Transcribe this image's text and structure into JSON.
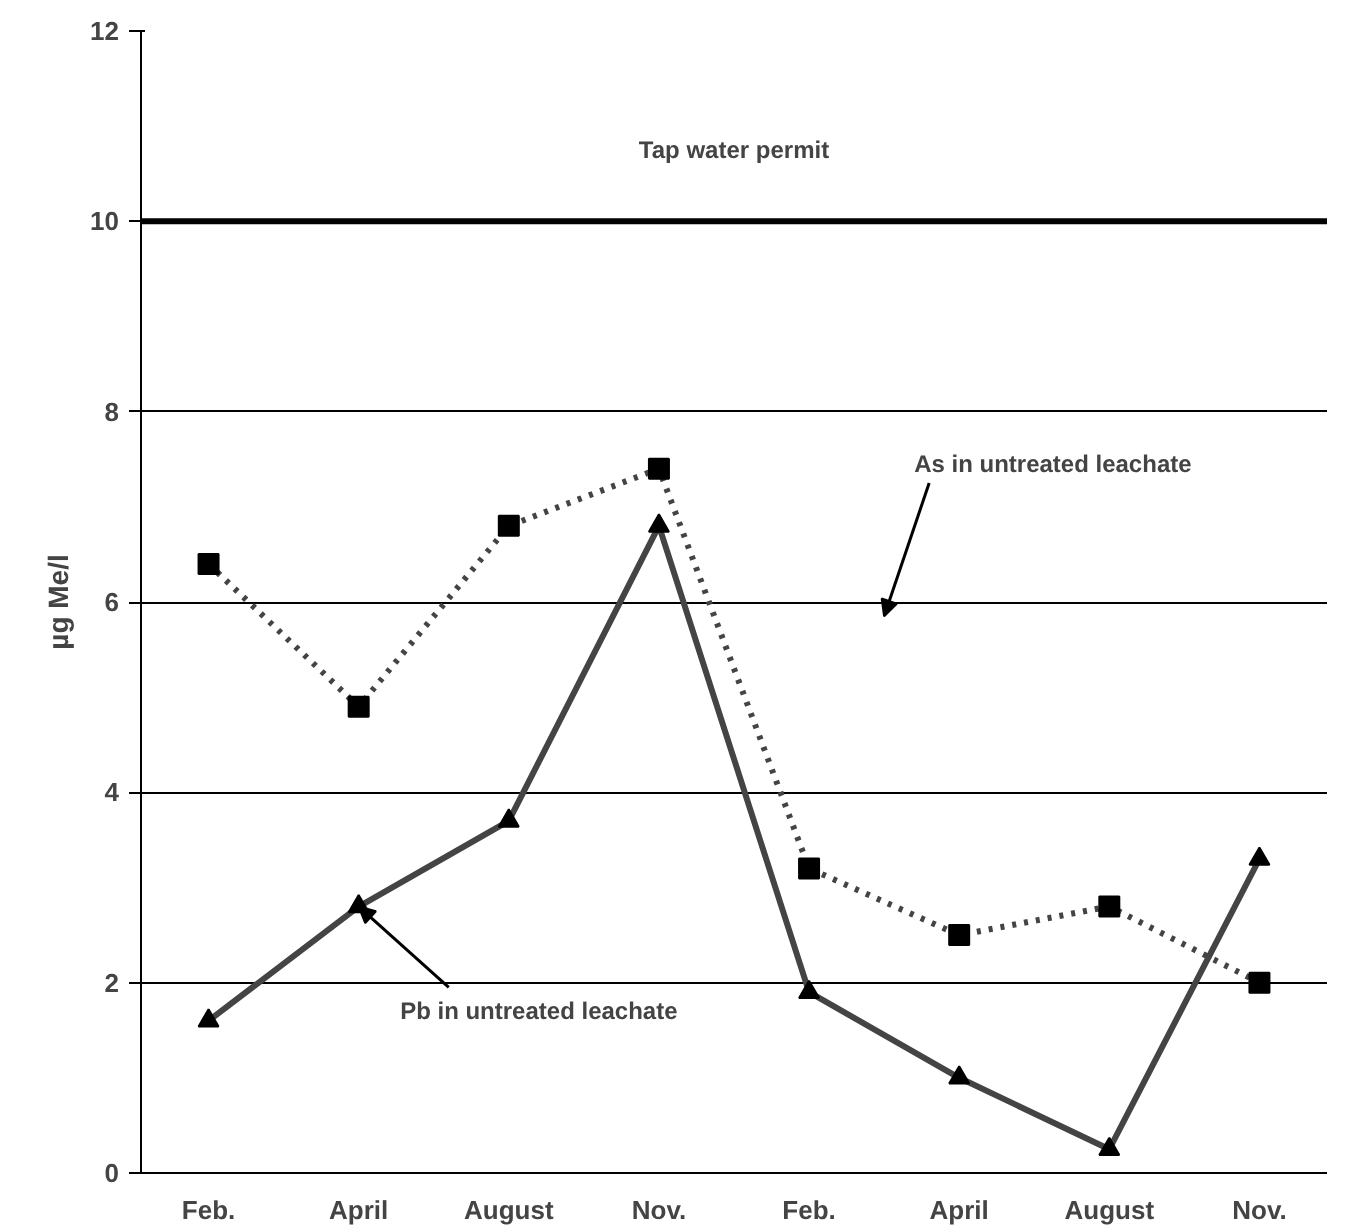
{
  "chart_data": {
    "type": "line",
    "ylabel": "µg Me/l",
    "categories": [
      "Feb.",
      "April",
      "August",
      "Nov.",
      "Feb.",
      "April",
      "August",
      "Nov."
    ],
    "series": [
      {
        "color": "#444444",
        "marker": "square",
        "line_style": "dotted",
        "values": [
          6.4,
          4.9,
          6.8,
          7.4,
          3.2,
          2.5,
          2.8,
          2.0
        ]
      },
      {
        "color": "#444444",
        "marker": "triangle",
        "line_style": "solid",
        "values": [
          1.6,
          2.8,
          3.7,
          6.8,
          1.9,
          1.0,
          0.25,
          3.3
        ]
      }
    ],
    "ylim": [
      0,
      12
    ],
    "yticks": [
      0,
      2,
      4,
      6,
      8,
      10,
      12
    ],
    "grid": "y",
    "ref_lines": [
      {
        "axis": "y",
        "value": 10,
        "label": "Tap water permit",
        "color": "#000000"
      }
    ],
    "annotations": [
      "As in untreated leachate",
      {
        "text": "Pb in untreated leachate",
        "x": "April",
        "y": 2.8
      }
    ]
  }
}
